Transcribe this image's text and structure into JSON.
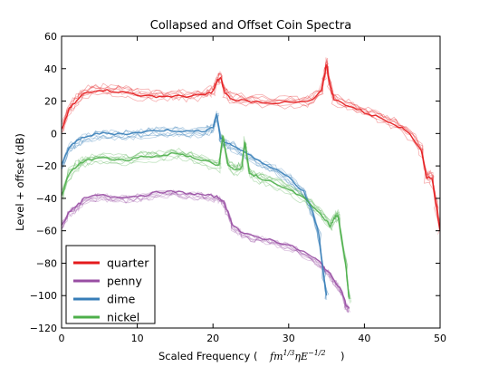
{
  "chart_data": {
    "type": "line",
    "title": "Collapsed and Offset Coin Spectra",
    "xlabel_prefix": "Scaled Frequency (",
    "xlabel_suffix": ")",
    "xlabel_math": "fm^{1/3} ηE^{-1/2}",
    "ylabel": "Level + offset (dB)",
    "xlim": [
      0,
      50
    ],
    "ylim": [
      -120,
      60
    ],
    "xticks": [
      0,
      10,
      20,
      30,
      40,
      50
    ],
    "yticks": [
      60,
      40,
      20,
      0,
      -20,
      -40,
      -60,
      -80,
      -100,
      -120
    ],
    "grid": false,
    "legend_position": "lower-left",
    "series": [
      {
        "name": "quarter",
        "color": "#e41a1c",
        "x": [
          0,
          1,
          2,
          3,
          5,
          7,
          9,
          11,
          13,
          15,
          17,
          19,
          20,
          20.6,
          21,
          21.6,
          22.5,
          25,
          28,
          31,
          33,
          34.3,
          34.7,
          35,
          35.4,
          36,
          38,
          40,
          42,
          44,
          46,
          47.5,
          48.2,
          48.9,
          49.5,
          50
        ],
        "values": [
          2,
          15,
          20,
          25,
          27,
          26,
          25,
          23,
          23,
          23,
          23,
          24,
          26,
          33,
          34,
          25,
          21,
          20,
          19,
          19,
          20,
          26,
          35,
          43,
          30,
          21,
          17,
          13,
          10,
          6,
          0,
          -10,
          -27,
          -27,
          -45,
          -60
        ]
      },
      {
        "name": "penny",
        "color": "#984ea3",
        "x": [
          0,
          1,
          2,
          3,
          5,
          7,
          9,
          11,
          13,
          15,
          17,
          19,
          20.5,
          21.3,
          21.8,
          22.6,
          24,
          26,
          28,
          30,
          32,
          34,
          35,
          36,
          37,
          37.6,
          38
        ],
        "values": [
          -57,
          -48,
          -45,
          -40,
          -38,
          -39,
          -39,
          -38,
          -36,
          -36,
          -37,
          -38,
          -39,
          -41,
          -46,
          -56,
          -62,
          -64,
          -66,
          -69,
          -73,
          -79,
          -84,
          -90,
          -97,
          -106,
          -108
        ]
      },
      {
        "name": "dime",
        "color": "#377eb8",
        "x": [
          0,
          1,
          2,
          3,
          5,
          7,
          9,
          11,
          13,
          15,
          17,
          19,
          20,
          20.5,
          21,
          21.5,
          22.5,
          24,
          26,
          28,
          30,
          32,
          33,
          34,
          34.6,
          35
        ],
        "values": [
          -20,
          -8,
          -5,
          -2,
          0,
          0,
          0,
          1,
          2,
          2,
          1,
          2,
          4,
          12,
          -3,
          -5,
          -7,
          -11,
          -17,
          -21,
          -27,
          -36,
          -46,
          -62,
          -87,
          -100
        ]
      },
      {
        "name": "nickel",
        "color": "#4daf4a",
        "x": [
          0,
          1,
          2,
          3,
          5,
          7,
          9,
          11,
          13,
          15,
          17,
          19,
          20.8,
          21.3,
          22,
          23,
          23.8,
          24.2,
          24.8,
          26,
          28,
          30,
          32,
          34,
          35.5,
          36.1,
          36.5,
          37.5,
          38
        ],
        "values": [
          -38,
          -25,
          -20,
          -17,
          -15,
          -16,
          -16,
          -14,
          -14,
          -12,
          -14,
          -17,
          -20,
          -2,
          -20,
          -22,
          -21,
          -5,
          -24,
          -27,
          -30,
          -34,
          -40,
          -48,
          -57,
          -52,
          -50,
          -80,
          -102
        ]
      }
    ]
  }
}
